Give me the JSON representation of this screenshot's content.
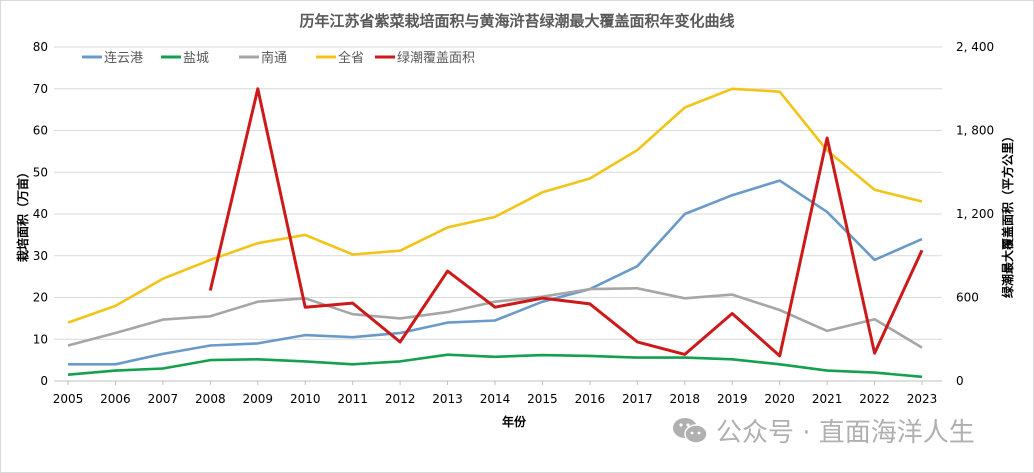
{
  "chart_data": {
    "type": "line",
    "title": "历年江苏省紫菜栽培面积与黄海浒苔绿潮最大覆盖面积年变化曲线",
    "xlabel": "年份",
    "ylabel": "栽培面积（万亩）",
    "y2label": "绿潮最大覆盖面积（平方公里）",
    "x": [
      "2005",
      "2006",
      "2007",
      "2008",
      "2009",
      "2010",
      "2011",
      "2012",
      "2013",
      "2014",
      "2015",
      "2016",
      "2017",
      "2018",
      "2019",
      "2020",
      "2021",
      "2022",
      "2023"
    ],
    "ylim": [
      0,
      80
    ],
    "yticks": [
      "0",
      "10",
      "20",
      "30",
      "40",
      "50",
      "60",
      "70",
      "80"
    ],
    "y2lim": [
      0,
      2400
    ],
    "y2ticks": [
      "0",
      "600",
      "1, 200",
      "1, 800",
      "2, 400"
    ],
    "grid": true,
    "legend_position": "top-left",
    "series": [
      {
        "name": "连云港",
        "axis": "left",
        "color": "#6a9ac9",
        "values": [
          4,
          4,
          6.5,
          8.5,
          9,
          11,
          10.5,
          11.5,
          14,
          14.5,
          19,
          22,
          27.5,
          40,
          44.5,
          48,
          40.5,
          29,
          34
        ]
      },
      {
        "name": "盐城",
        "axis": "left",
        "color": "#14a04e",
        "values": [
          1.5,
          2.5,
          3,
          5,
          5.2,
          4.7,
          4,
          4.7,
          6.3,
          5.8,
          6.2,
          6,
          5.6,
          5.6,
          5.2,
          4,
          2.5,
          2,
          1
        ]
      },
      {
        "name": "南通",
        "axis": "left",
        "color": "#a6a6a6",
        "values": [
          8.5,
          11.5,
          14.7,
          15.5,
          19,
          19.8,
          16,
          15,
          16.5,
          19,
          20.2,
          22,
          22.2,
          19.8,
          20.7,
          17,
          12,
          14.8,
          8
        ]
      },
      {
        "name": "全省",
        "axis": "left",
        "color": "#f2c418",
        "values": [
          14,
          18,
          24.5,
          29,
          33,
          35,
          30.3,
          31.2,
          36.8,
          39.3,
          45.2,
          48.5,
          55.3,
          65.5,
          70,
          69.3,
          55.2,
          45.8,
          43
        ]
      },
      {
        "name": "绿潮覆盖面积",
        "axis": "right",
        "color": "#cc1a1a",
        "values": [
          null,
          null,
          null,
          650,
          2100,
          530,
          560,
          280,
          790,
          530,
          596,
          554,
          281,
          191,
          485,
          180,
          1746,
          200,
          940
        ]
      }
    ]
  },
  "watermark": {
    "text": "公众号 · 直面海洋人生",
    "icon": "wechat-icon"
  }
}
